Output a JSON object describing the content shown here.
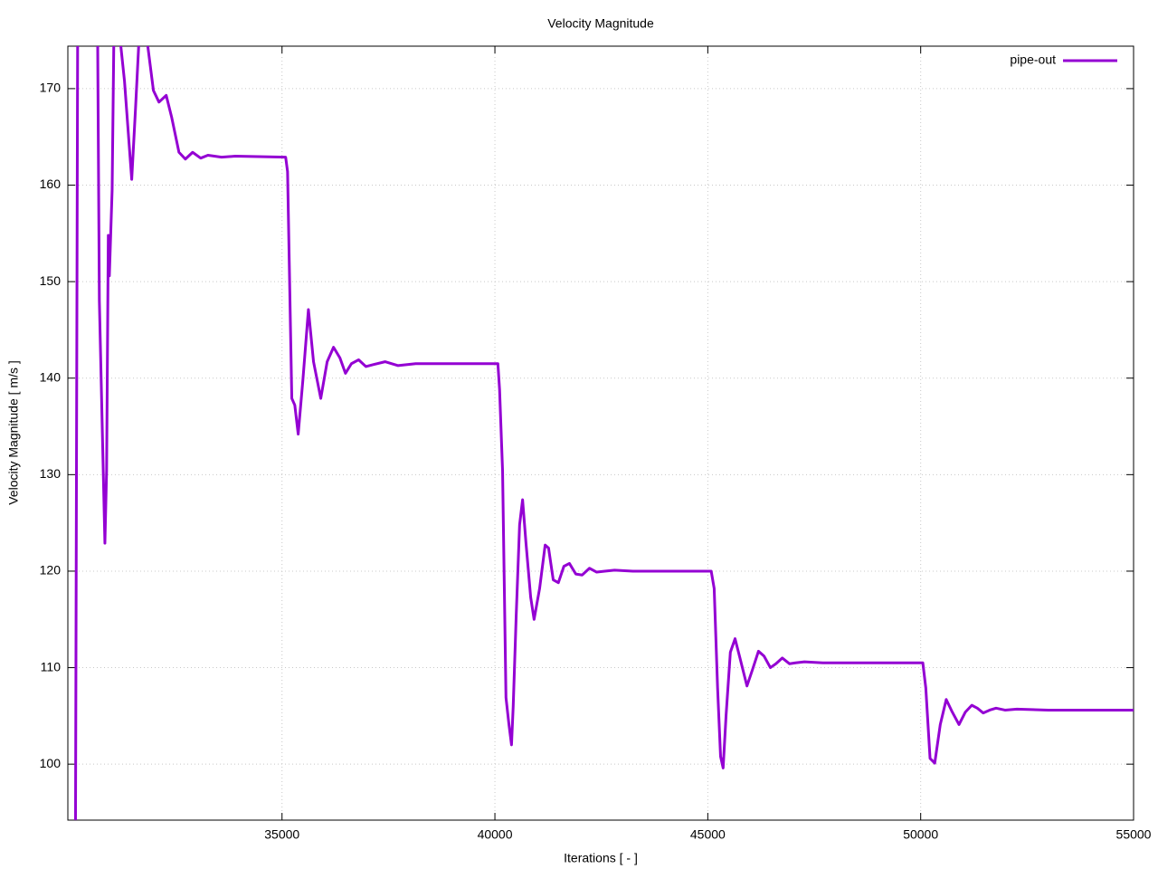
{
  "chart_data": {
    "type": "line",
    "title": "Velocity Magnitude",
    "x_label": "Iterations [ - ]",
    "y_label": "Velocity Magnitude [ m/s ]",
    "xlim": [
      29970,
      55000
    ],
    "ylim": [
      94.2,
      174.4
    ],
    "xticks": [
      35000,
      40000,
      45000,
      50000,
      55000
    ],
    "yticks": [
      100,
      110,
      120,
      130,
      140,
      150,
      160,
      170
    ],
    "grid": true,
    "legend": "top-right",
    "x": [
      30150,
      30200,
      30670,
      30710,
      30840,
      30880,
      30920,
      30945,
      31010,
      31050,
      31200,
      31300,
      31470,
      31560,
      31640,
      31830,
      31980,
      32110,
      32280,
      32410,
      32580,
      32730,
      32900,
      33090,
      33260,
      33580,
      33900,
      35085,
      35130,
      35170,
      35230,
      35300,
      35380,
      35490,
      35620,
      35740,
      35910,
      36060,
      36210,
      36360,
      36490,
      36630,
      36800,
      36970,
      37140,
      37420,
      37720,
      38140,
      40070,
      40110,
      40180,
      40260,
      40330,
      40390,
      40430,
      40500,
      40580,
      40650,
      40730,
      40840,
      40920,
      41050,
      41180,
      41260,
      41370,
      41490,
      41620,
      41750,
      41900,
      42050,
      42220,
      42390,
      42580,
      42810,
      43240,
      45080,
      45150,
      45230,
      45300,
      45360,
      45430,
      45530,
      45640,
      45750,
      45920,
      46050,
      46190,
      46320,
      46470,
      46600,
      46750,
      46920,
      47060,
      47270,
      47700,
      48330,
      50050,
      50120,
      50220,
      50330,
      50460,
      50600,
      50730,
      50900,
      51050,
      51200,
      51330,
      51470,
      51620,
      51770,
      51980,
      52260,
      53000,
      55000
    ],
    "series": [
      {
        "name": "pipe-out",
        "color": "#9400d3",
        "values": [
          94,
          175,
          175,
          148,
          122.9,
          130.4,
          154.8,
          150.6,
          159.5,
          175,
          175,
          170.8,
          160.6,
          168,
          175,
          175,
          169.8,
          168.6,
          169.3,
          167,
          163.4,
          162.7,
          163.4,
          162.8,
          163.1,
          162.9,
          163,
          162.9,
          161.4,
          152,
          137.9,
          137.2,
          134.2,
          139.8,
          147.1,
          141.7,
          137.9,
          141.7,
          143.2,
          142.1,
          140.5,
          141.5,
          141.9,
          141.2,
          141.4,
          141.7,
          141.3,
          141.5,
          141.5,
          138.8,
          130.4,
          106.9,
          104.1,
          102,
          106,
          115.4,
          124.8,
          127.4,
          122.9,
          117.3,
          115,
          118.2,
          122.7,
          122.4,
          119.1,
          118.8,
          120.5,
          120.8,
          119.7,
          119.6,
          120.3,
          119.9,
          120,
          120.1,
          120,
          120,
          118.2,
          107.9,
          100.8,
          99.6,
          105.1,
          111.6,
          113,
          111.1,
          108.1,
          109.8,
          111.7,
          111.2,
          110,
          110.4,
          111,
          110.4,
          110.5,
          110.6,
          110.5,
          110.5,
          110.5,
          107.9,
          100.6,
          100.1,
          104.1,
          106.7,
          105.5,
          104.1,
          105.4,
          106.1,
          105.8,
          105.3,
          105.6,
          105.8,
          105.6,
          105.7,
          105.6,
          105.6
        ]
      }
    ]
  }
}
